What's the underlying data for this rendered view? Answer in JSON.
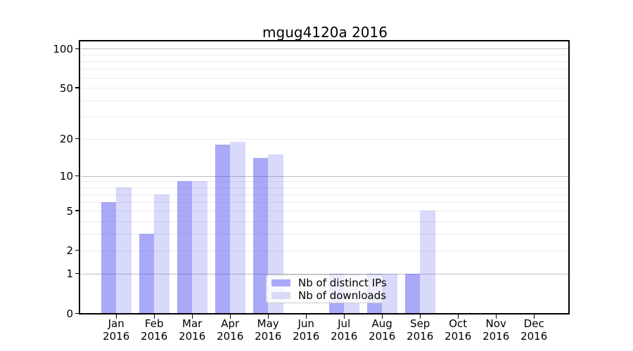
{
  "chart_data": {
    "type": "bar",
    "title": "mgug4120a 2016",
    "year_label": "2016",
    "categories": [
      "Jan",
      "Feb",
      "Mar",
      "Apr",
      "May",
      "Jun",
      "Jul",
      "Aug",
      "Sep",
      "Oct",
      "Nov",
      "Dec"
    ],
    "series": [
      {
        "name": "Nb of distinct IPs",
        "values": [
          6,
          3,
          9,
          18,
          14,
          0,
          1,
          1,
          1,
          0,
          0,
          0
        ],
        "color": "#5050f0",
        "alpha": 0.49,
        "swatch_color": "#a9a9f8"
      },
      {
        "name": "Nb of downloads",
        "values": [
          8,
          7,
          9,
          19,
          15,
          0,
          1,
          1,
          5,
          0,
          0,
          0
        ],
        "color": "#5050f0",
        "alpha": 0.22,
        "swatch_color": "#d9d9f8"
      }
    ],
    "yscale": "log1p",
    "ylim": [
      0,
      113
    ],
    "ytick_labels": [
      "100",
      "50",
      "20",
      "10",
      "5",
      "2",
      "1",
      "0"
    ],
    "ytick_values": [
      100,
      50,
      20,
      10,
      5,
      2,
      1,
      0
    ],
    "grid": "on",
    "grid_major_values": [
      1,
      10,
      100
    ],
    "grid_minor_values": [
      2,
      3,
      4,
      5,
      6,
      7,
      8,
      9,
      20,
      30,
      40,
      50,
      60,
      70,
      80,
      90
    ],
    "legend_position": "lower center inside",
    "colors": {
      "grid_major": "#bdbdbd",
      "grid_minor": "#ececec",
      "spine": "#000000",
      "legend_border": "#cccccc",
      "background": "#ffffff"
    }
  }
}
